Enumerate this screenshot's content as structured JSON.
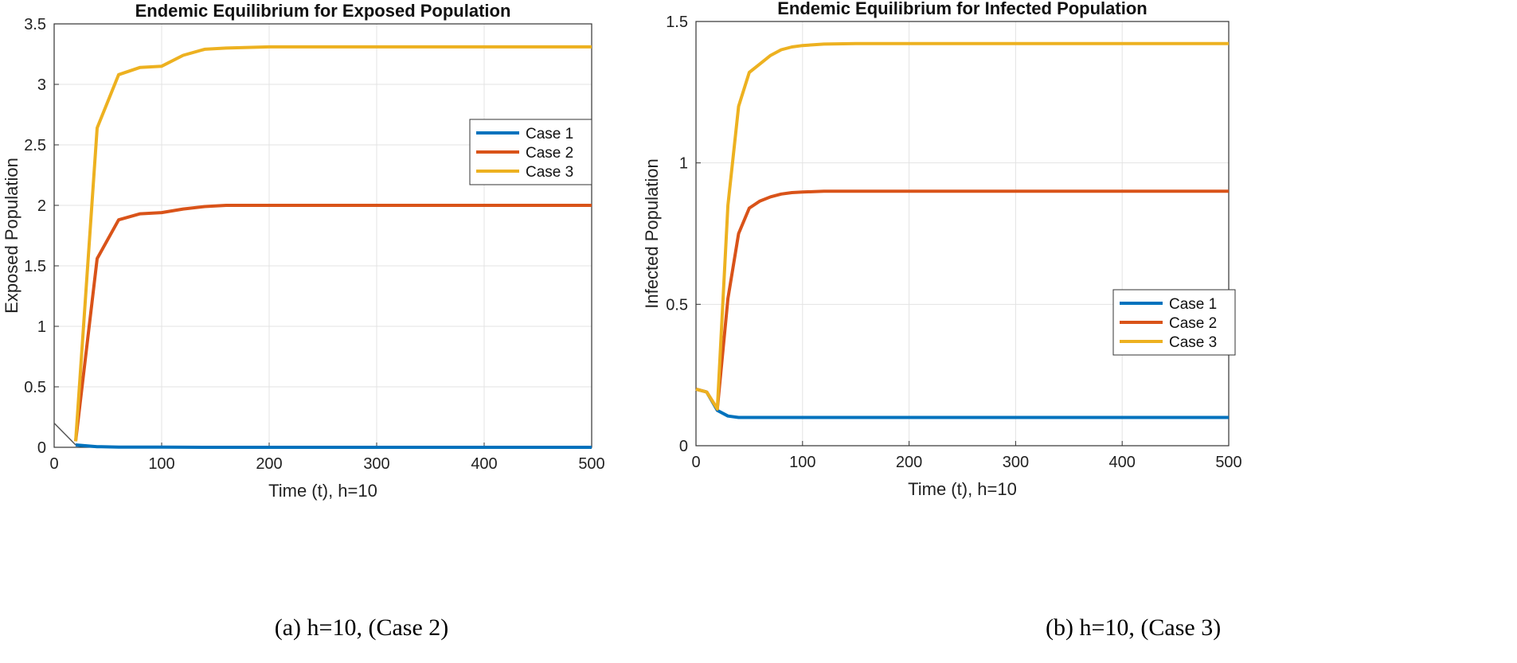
{
  "chart_data": [
    {
      "type": "line",
      "title": "Endemic Equilibrium for Exposed Population",
      "xlabel": "Time (t), h=10",
      "ylabel": "Exposed Population",
      "xlim": [
        0,
        500
      ],
      "ylim": [
        0,
        3.5
      ],
      "xticks": [
        "0",
        "100",
        "200",
        "300",
        "400",
        "500"
      ],
      "yticks": [
        "0",
        "0.5",
        "1",
        "1.5",
        "2",
        "2.5",
        "3",
        "3.5"
      ],
      "grid": true,
      "legend_position": "right-upper",
      "caption": "(a) h=10, (Case 2)",
      "colors": {
        "Case 1": "#0072BD",
        "Case 2": "#D95319",
        "Case 3": "#EDB120",
        "pre": "#555555"
      },
      "series": [
        {
          "name": "Case 1",
          "x": [
            20,
            40,
            60,
            80,
            100,
            150,
            200,
            300,
            400,
            500
          ],
          "y": [
            0.02,
            0.005,
            0.002,
            0.001,
            0.001,
            0,
            0,
            0,
            0,
            0
          ]
        },
        {
          "name": "Case 2",
          "x": [
            20,
            40,
            60,
            80,
            100,
            120,
            140,
            160,
            200,
            250,
            300,
            400,
            500
          ],
          "y": [
            0.05,
            1.56,
            1.88,
            1.93,
            1.94,
            1.97,
            1.99,
            2.0,
            2.0,
            2.0,
            2.0,
            2.0,
            2.0
          ]
        },
        {
          "name": "Case 3",
          "x": [
            20,
            40,
            60,
            80,
            100,
            120,
            140,
            160,
            200,
            250,
            300,
            400,
            500
          ],
          "y": [
            0.05,
            2.64,
            3.08,
            3.14,
            3.15,
            3.24,
            3.29,
            3.3,
            3.31,
            3.31,
            3.31,
            3.31,
            3.31
          ]
        },
        {
          "x": [
            0,
            20
          ],
          "y": [
            0.2,
            0.02
          ]
        }
      ]
    },
    {
      "type": "line",
      "title": "Endemic Equilibrium for Infected Population",
      "xlabel": "Time (t), h=10",
      "ylabel": "Infected Population",
      "xlim": [
        0,
        500
      ],
      "ylim": [
        0,
        1.5
      ],
      "xticks": [
        "0",
        "100",
        "200",
        "300",
        "400",
        "500"
      ],
      "yticks": [
        "0",
        "0.5",
        "1",
        "1.5"
      ],
      "grid": true,
      "legend_position": "right-middle",
      "caption": "(b) h=10, (Case 3)",
      "colors": {
        "Case 1": "#0072BD",
        "Case 2": "#D95319",
        "Case 3": "#EDB120"
      },
      "series": [
        {
          "name": "Case 1",
          "x": [
            0,
            10,
            20,
            30,
            40,
            60,
            100,
            200,
            300,
            400,
            500
          ],
          "y": [
            0.2,
            0.19,
            0.125,
            0.105,
            0.1,
            0.1,
            0.1,
            0.1,
            0.1,
            0.1,
            0.1
          ]
        },
        {
          "name": "Case 2",
          "x": [
            0,
            10,
            20,
            30,
            40,
            50,
            60,
            70,
            80,
            90,
            100,
            120,
            150,
            200,
            300,
            400,
            500
          ],
          "y": [
            0.2,
            0.19,
            0.13,
            0.52,
            0.75,
            0.84,
            0.865,
            0.88,
            0.89,
            0.895,
            0.897,
            0.9,
            0.9,
            0.9,
            0.9,
            0.9,
            0.9
          ]
        },
        {
          "name": "Case 3",
          "x": [
            0,
            10,
            20,
            30,
            40,
            50,
            60,
            70,
            80,
            90,
            100,
            120,
            150,
            200,
            300,
            400,
            500
          ],
          "y": [
            0.2,
            0.19,
            0.13,
            0.85,
            1.2,
            1.32,
            1.35,
            1.38,
            1.4,
            1.41,
            1.415,
            1.42,
            1.422,
            1.422,
            1.422,
            1.422,
            1.422
          ]
        }
      ]
    }
  ]
}
